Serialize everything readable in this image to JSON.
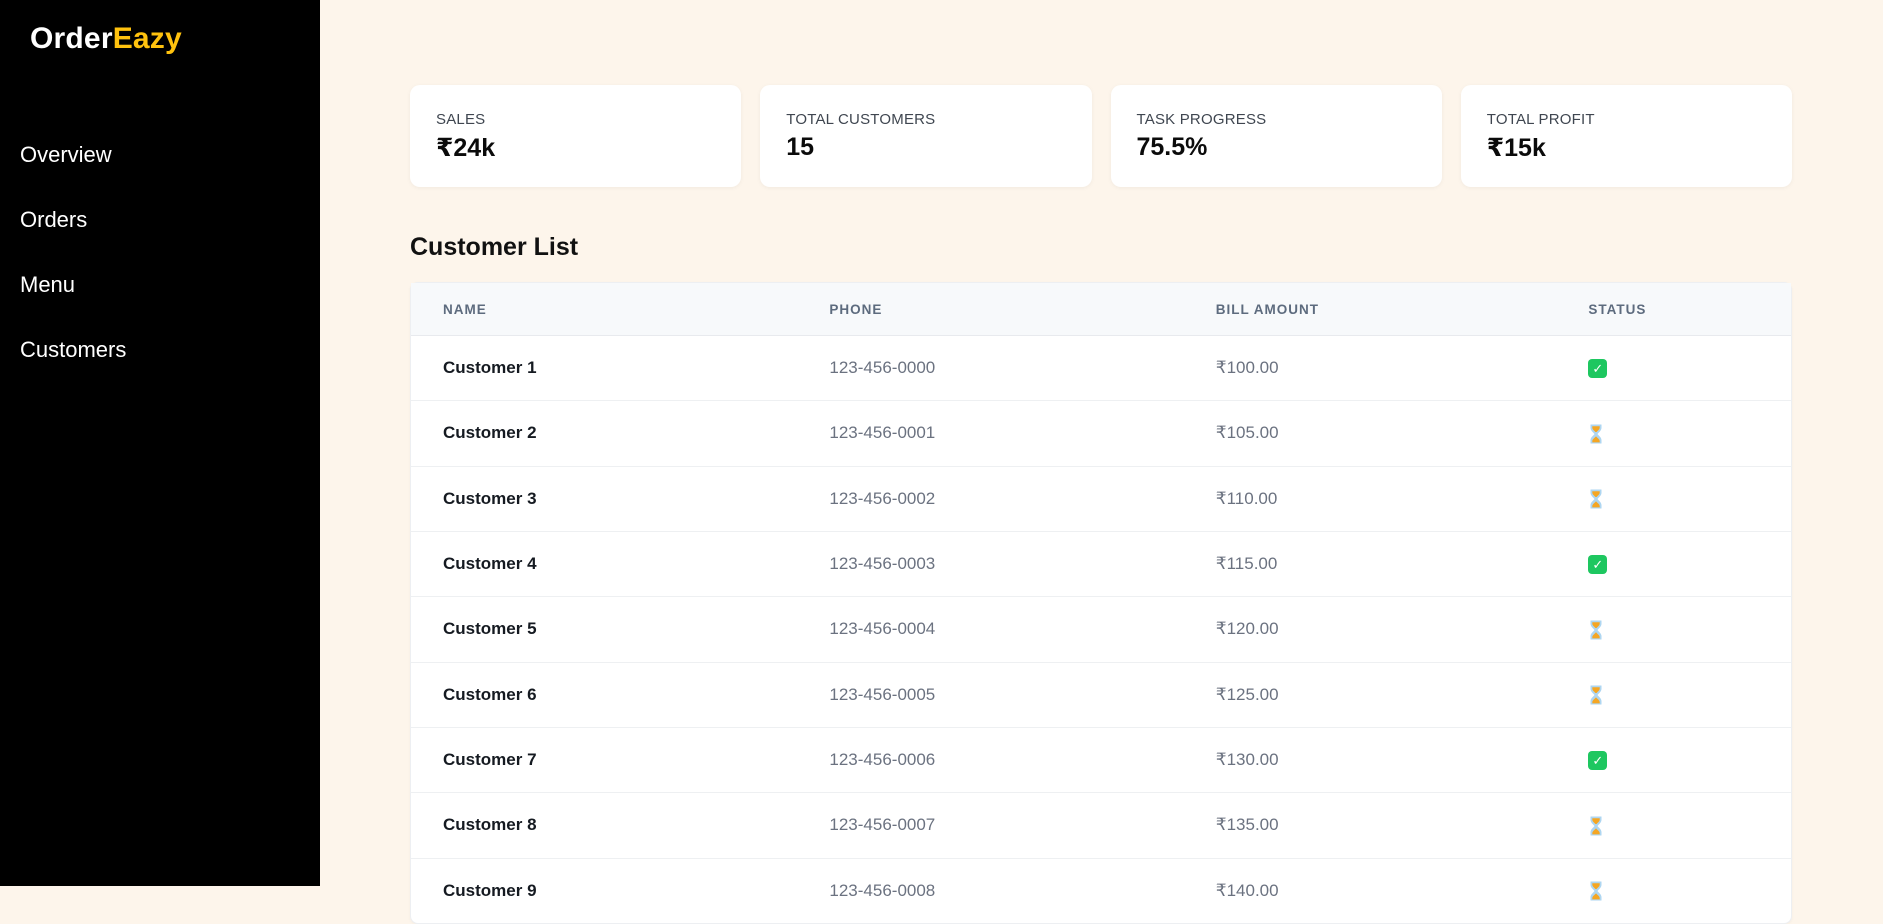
{
  "brand": {
    "name_primary": "Order",
    "name_accent": "Eazy"
  },
  "sidebar": {
    "items": [
      {
        "label": "Overview"
      },
      {
        "label": "Orders"
      },
      {
        "label": "Menu"
      },
      {
        "label": "Customers"
      }
    ]
  },
  "stats": [
    {
      "label": "SALES",
      "value": "₹24k"
    },
    {
      "label": "TOTAL CUSTOMERS",
      "value": "15"
    },
    {
      "label": "TASK PROGRESS",
      "value": "75.5%"
    },
    {
      "label": "TOTAL PROFIT",
      "value": "₹15k"
    }
  ],
  "customer_list": {
    "title": "Customer List",
    "columns": [
      "NAME",
      "PHONE",
      "BILL AMOUNT",
      "STATUS"
    ],
    "rows": [
      {
        "name": "Customer 1",
        "phone": "123-456-0000",
        "bill": "₹100.00",
        "status": "completed"
      },
      {
        "name": "Customer 2",
        "phone": "123-456-0001",
        "bill": "₹105.00",
        "status": "pending"
      },
      {
        "name": "Customer 3",
        "phone": "123-456-0002",
        "bill": "₹110.00",
        "status": "pending"
      },
      {
        "name": "Customer 4",
        "phone": "123-456-0003",
        "bill": "₹115.00",
        "status": "completed"
      },
      {
        "name": "Customer 5",
        "phone": "123-456-0004",
        "bill": "₹120.00",
        "status": "pending"
      },
      {
        "name": "Customer 6",
        "phone": "123-456-0005",
        "bill": "₹125.00",
        "status": "pending"
      },
      {
        "name": "Customer 7",
        "phone": "123-456-0006",
        "bill": "₹130.00",
        "status": "completed"
      },
      {
        "name": "Customer 8",
        "phone": "123-456-0007",
        "bill": "₹135.00",
        "status": "pending"
      },
      {
        "name": "Customer 9",
        "phone": "123-456-0008",
        "bill": "₹140.00",
        "status": "pending"
      }
    ],
    "status_icons": {
      "completed": "check-icon",
      "pending": "hourglass-icon"
    }
  },
  "colors": {
    "accent_gold": "#ffc20e",
    "background_cream": "#fdf5eb",
    "sidebar_black": "#000000",
    "success_green": "#1ec760",
    "hourglass_sand": "#f5a623",
    "hourglass_glass": "#aed6f1"
  }
}
